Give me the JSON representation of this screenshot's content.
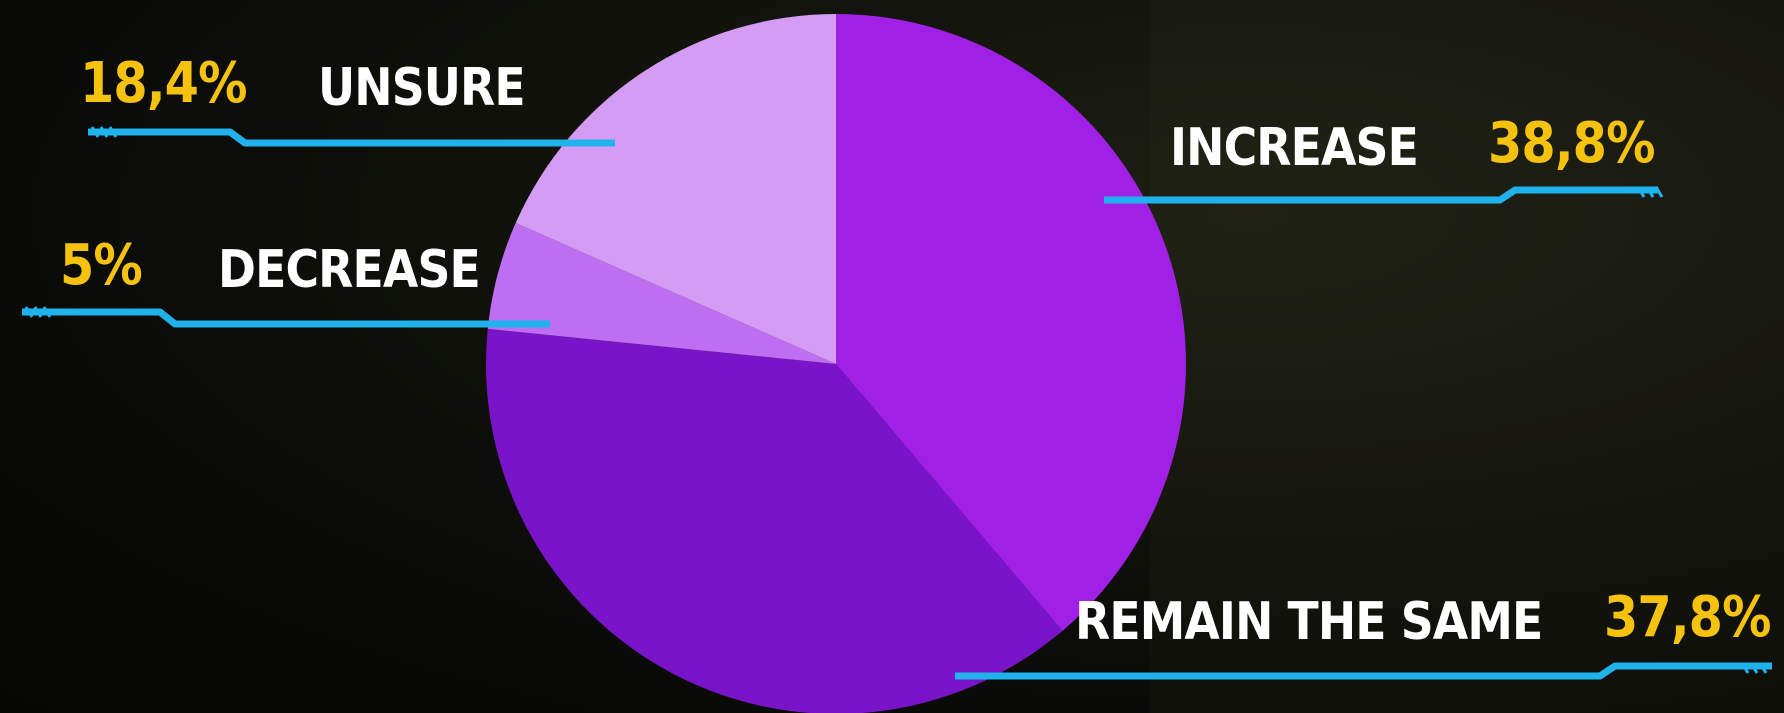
{
  "chart_data": {
    "type": "pie",
    "title": "",
    "slices": [
      {
        "label": "INCREASE",
        "value": 38.8,
        "value_text": "38,8%",
        "color": "#a020e6"
      },
      {
        "label": "REMAIN THE SAME",
        "value": 37.8,
        "value_text": "37,8%",
        "color": "#7a14c8"
      },
      {
        "label": "DECREASE",
        "value": 5,
        "value_text": "5%",
        "color": "#be6ef0"
      },
      {
        "label": "UNSURE",
        "value": 18.4,
        "value_text": "18,4%",
        "color": "#d49cf2"
      }
    ],
    "start_angle": "12 o'clock",
    "direction": "clockwise",
    "legend": "none",
    "label_style": "callout lines",
    "colors": {
      "label_text": "#ffffff",
      "value_text": "#f4c20f",
      "leader_line": "#1fb2ec",
      "background": "#0b0b08"
    }
  }
}
